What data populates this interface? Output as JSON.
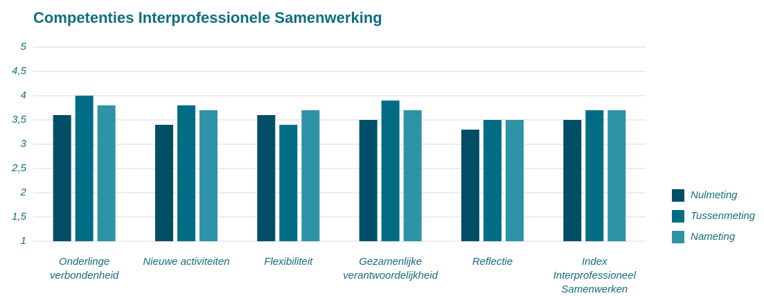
{
  "chart_data": {
    "type": "bar",
    "title": "Competenties Interprofessionele Samenwerking",
    "categories": [
      "Onderlinge verbondenheid",
      "Nieuwe activiteiten",
      "Flexibiliteit",
      "Gezamenlijke verantwoordelijkheid",
      "Reflectie",
      "Index Interprofessioneel Samenwerken"
    ],
    "series": [
      {
        "name": "Nulmeting",
        "color": "#004f66",
        "values": [
          3.6,
          3.4,
          3.6,
          3.5,
          3.3,
          3.5
        ]
      },
      {
        "name": "Tussenmeting",
        "color": "#006d85",
        "values": [
          4.0,
          3.8,
          3.4,
          3.9,
          3.5,
          3.7
        ]
      },
      {
        "name": "Nameting",
        "color": "#2e93a6",
        "values": [
          3.8,
          3.7,
          3.7,
          3.7,
          3.5,
          3.7
        ]
      }
    ],
    "ylim": [
      1,
      5
    ],
    "yticks": [
      1,
      {
        "value": 1.5,
        "label": "1,5"
      },
      2,
      {
        "value": 2.5,
        "label": "2,5"
      },
      3,
      {
        "value": 3.5,
        "label": "3,5"
      },
      4,
      {
        "value": 4.5,
        "label": "4,5"
      },
      5
    ],
    "grid": true,
    "legend": "right"
  }
}
